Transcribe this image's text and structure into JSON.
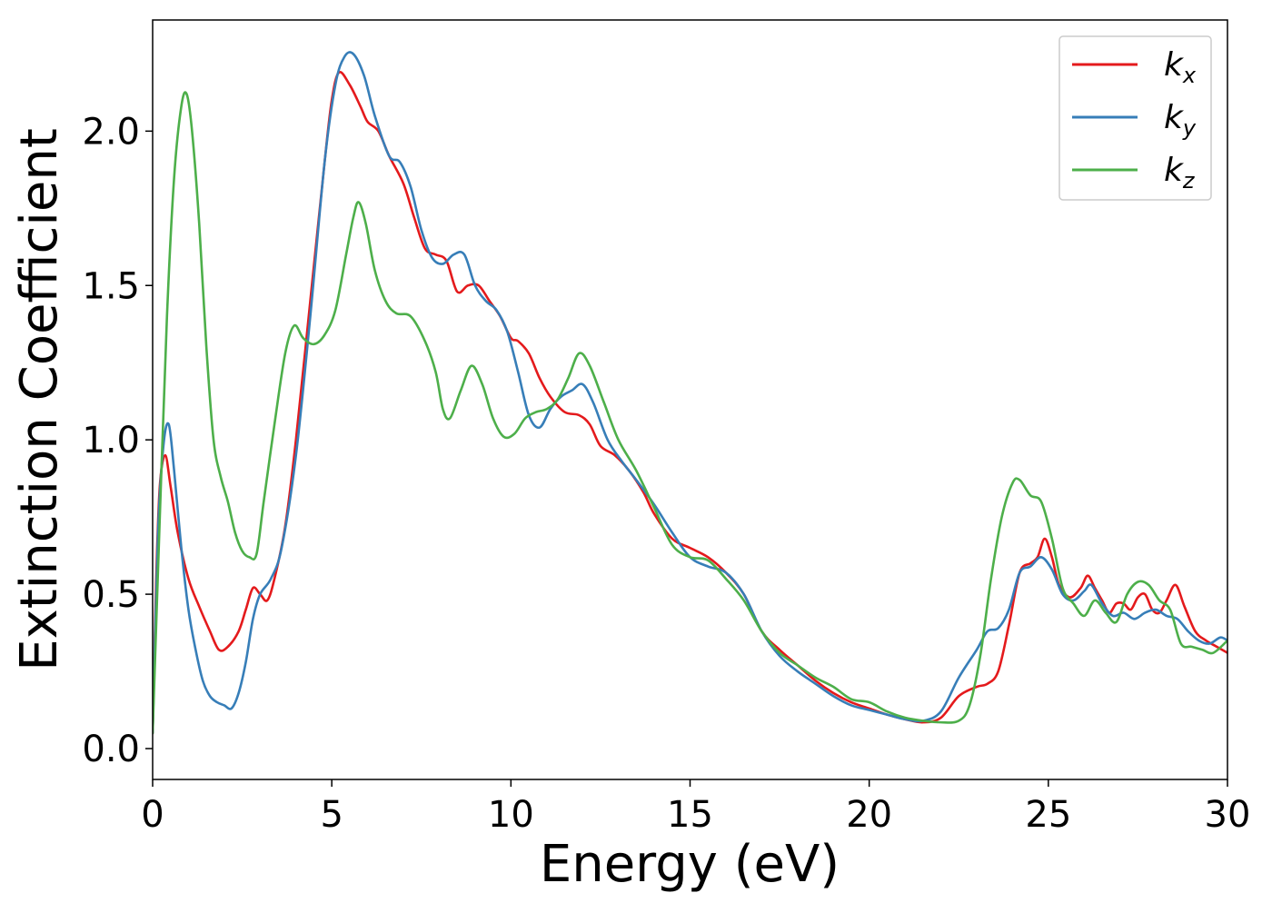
{
  "chart_data": {
    "type": "line",
    "title": "",
    "xlabel": "Energy (eV)",
    "ylabel": "Extinction Coefficient",
    "xlim": [
      0,
      30
    ],
    "ylim": [
      -0.1,
      2.36
    ],
    "xticks": [
      0,
      5,
      10,
      15,
      20,
      25,
      30
    ],
    "xtick_labels": [
      "0",
      "5",
      "10",
      "15",
      "20",
      "25",
      "30"
    ],
    "yticks": [
      0.0,
      0.5,
      1.0,
      1.5,
      2.0
    ],
    "ytick_labels": [
      "0.0",
      "0.5",
      "1.0",
      "1.5",
      "2.0"
    ],
    "grid": false,
    "legend_position": "top-right",
    "series": [
      {
        "name": "k",
        "subscript": "x",
        "color": "#e41a1c",
        "x": [
          0,
          0.1,
          0.2,
          0.35,
          0.5,
          0.7,
          1.0,
          1.3,
          1.6,
          1.85,
          2.1,
          2.4,
          2.6,
          2.8,
          3.0,
          3.2,
          3.4,
          3.7,
          4.0,
          4.4,
          4.8,
          5.0,
          5.2,
          5.5,
          5.8,
          6.0,
          6.3,
          6.6,
          7.0,
          7.3,
          7.6,
          7.9,
          8.2,
          8.5,
          8.8,
          9.1,
          9.4,
          9.7,
          10.0,
          10.2,
          10.5,
          10.8,
          11.1,
          11.5,
          11.9,
          12.2,
          12.5,
          12.9,
          13.3,
          13.7,
          14.0,
          14.5,
          15.0,
          15.5,
          16.0,
          16.5,
          17.0,
          17.5,
          18.0,
          18.5,
          19.0,
          19.5,
          20.0,
          20.5,
          21.0,
          21.5,
          22.0,
          22.5,
          23.0,
          23.3,
          23.6,
          23.9,
          24.2,
          24.5,
          24.7,
          24.9,
          25.1,
          25.3,
          25.6,
          25.9,
          26.1,
          26.3,
          26.5,
          26.7,
          26.9,
          27.1,
          27.3,
          27.5,
          27.7,
          27.9,
          28.1,
          28.3,
          28.55,
          28.8,
          29.1,
          29.4,
          29.7,
          30.0
        ],
        "y": [
          0.05,
          0.55,
          0.85,
          0.95,
          0.85,
          0.7,
          0.55,
          0.46,
          0.38,
          0.32,
          0.33,
          0.38,
          0.45,
          0.52,
          0.5,
          0.48,
          0.55,
          0.72,
          1.0,
          1.45,
          1.9,
          2.1,
          2.19,
          2.15,
          2.08,
          2.03,
          2.0,
          1.92,
          1.83,
          1.72,
          1.62,
          1.6,
          1.58,
          1.48,
          1.5,
          1.5,
          1.45,
          1.4,
          1.33,
          1.32,
          1.28,
          1.2,
          1.14,
          1.09,
          1.08,
          1.05,
          0.98,
          0.95,
          0.9,
          0.83,
          0.76,
          0.68,
          0.65,
          0.62,
          0.57,
          0.5,
          0.38,
          0.32,
          0.27,
          0.22,
          0.18,
          0.15,
          0.13,
          0.11,
          0.095,
          0.085,
          0.1,
          0.17,
          0.2,
          0.21,
          0.25,
          0.4,
          0.57,
          0.6,
          0.62,
          0.68,
          0.62,
          0.53,
          0.49,
          0.52,
          0.56,
          0.52,
          0.48,
          0.44,
          0.47,
          0.47,
          0.45,
          0.49,
          0.5,
          0.45,
          0.44,
          0.48,
          0.53,
          0.46,
          0.38,
          0.35,
          0.33,
          0.31
        ]
      },
      {
        "name": "k",
        "subscript": "y",
        "color": "#377eb8",
        "x": [
          0,
          0.15,
          0.3,
          0.45,
          0.6,
          0.8,
          1.0,
          1.2,
          1.4,
          1.6,
          1.8,
          2.0,
          2.2,
          2.4,
          2.6,
          2.8,
          3.0,
          3.3,
          3.6,
          4.0,
          4.4,
          4.8,
          5.1,
          5.35,
          5.6,
          5.9,
          6.2,
          6.6,
          6.9,
          7.2,
          7.5,
          7.8,
          8.1,
          8.4,
          8.7,
          9.0,
          9.3,
          9.6,
          9.9,
          10.2,
          10.5,
          10.8,
          11.1,
          11.4,
          11.7,
          12.0,
          12.3,
          12.7,
          13.1,
          13.5,
          14.0,
          14.5,
          15.0,
          15.5,
          16.0,
          16.5,
          17.0,
          17.5,
          18.0,
          18.5,
          19.0,
          19.5,
          20.0,
          20.5,
          21.0,
          21.5,
          22.0,
          22.5,
          23.0,
          23.3,
          23.6,
          23.9,
          24.2,
          24.5,
          24.8,
          25.1,
          25.4,
          25.7,
          26.0,
          26.2,
          26.5,
          26.8,
          27.1,
          27.4,
          27.7,
          28.0,
          28.3,
          28.6,
          28.9,
          29.2,
          29.5,
          29.8,
          30.0
        ],
        "y": [
          0.05,
          0.7,
          0.98,
          1.05,
          0.9,
          0.65,
          0.45,
          0.32,
          0.22,
          0.17,
          0.15,
          0.14,
          0.13,
          0.18,
          0.28,
          0.42,
          0.5,
          0.55,
          0.65,
          0.95,
          1.4,
          1.9,
          2.15,
          2.24,
          2.25,
          2.18,
          2.05,
          1.92,
          1.9,
          1.82,
          1.68,
          1.59,
          1.57,
          1.6,
          1.6,
          1.5,
          1.45,
          1.42,
          1.35,
          1.22,
          1.08,
          1.04,
          1.1,
          1.14,
          1.16,
          1.18,
          1.12,
          1.0,
          0.93,
          0.87,
          0.79,
          0.7,
          0.62,
          0.59,
          0.57,
          0.5,
          0.38,
          0.3,
          0.25,
          0.21,
          0.17,
          0.14,
          0.125,
          0.11,
          0.095,
          0.09,
          0.12,
          0.23,
          0.32,
          0.38,
          0.39,
          0.45,
          0.57,
          0.59,
          0.62,
          0.58,
          0.5,
          0.48,
          0.51,
          0.53,
          0.47,
          0.43,
          0.44,
          0.42,
          0.44,
          0.45,
          0.43,
          0.42,
          0.38,
          0.35,
          0.34,
          0.36,
          0.35
        ]
      },
      {
        "name": "k",
        "subscript": "z",
        "color": "#4daf4a",
        "x": [
          0,
          0.2,
          0.4,
          0.6,
          0.8,
          0.95,
          1.1,
          1.3,
          1.5,
          1.7,
          1.9,
          2.1,
          2.3,
          2.5,
          2.7,
          2.9,
          3.1,
          3.4,
          3.7,
          3.95,
          4.2,
          4.5,
          4.8,
          5.1,
          5.4,
          5.6,
          5.75,
          5.95,
          6.2,
          6.5,
          6.8,
          7.2,
          7.6,
          7.9,
          8.1,
          8.3,
          8.6,
          8.9,
          9.2,
          9.5,
          9.8,
          10.1,
          10.4,
          10.7,
          11.0,
          11.3,
          11.6,
          11.9,
          12.2,
          12.6,
          13.0,
          13.5,
          14.0,
          14.5,
          15.0,
          15.5,
          16.0,
          16.5,
          17.0,
          17.5,
          18.0,
          18.5,
          19.0,
          19.5,
          20.0,
          20.5,
          21.0,
          21.5,
          22.0,
          22.5,
          22.8,
          23.1,
          23.4,
          23.7,
          24.0,
          24.2,
          24.5,
          24.8,
          25.1,
          25.4,
          25.7,
          26.0,
          26.3,
          26.6,
          26.9,
          27.2,
          27.5,
          27.8,
          28.1,
          28.4,
          28.7,
          29.0,
          29.3,
          29.6,
          30.0
        ],
        "y": [
          0.05,
          0.75,
          1.4,
          1.85,
          2.08,
          2.12,
          2.0,
          1.7,
          1.3,
          1.0,
          0.88,
          0.8,
          0.7,
          0.64,
          0.62,
          0.63,
          0.8,
          1.05,
          1.28,
          1.37,
          1.33,
          1.31,
          1.34,
          1.42,
          1.6,
          1.72,
          1.77,
          1.7,
          1.55,
          1.45,
          1.41,
          1.4,
          1.32,
          1.22,
          1.1,
          1.07,
          1.16,
          1.24,
          1.18,
          1.07,
          1.01,
          1.02,
          1.07,
          1.09,
          1.1,
          1.13,
          1.2,
          1.28,
          1.24,
          1.12,
          1.0,
          0.9,
          0.78,
          0.66,
          0.62,
          0.61,
          0.55,
          0.48,
          0.38,
          0.31,
          0.27,
          0.23,
          0.2,
          0.16,
          0.15,
          0.12,
          0.1,
          0.09,
          0.085,
          0.09,
          0.14,
          0.3,
          0.55,
          0.75,
          0.86,
          0.87,
          0.82,
          0.8,
          0.68,
          0.52,
          0.47,
          0.43,
          0.48,
          0.44,
          0.41,
          0.5,
          0.54,
          0.53,
          0.48,
          0.45,
          0.34,
          0.33,
          0.32,
          0.31,
          0.35
        ]
      }
    ]
  }
}
